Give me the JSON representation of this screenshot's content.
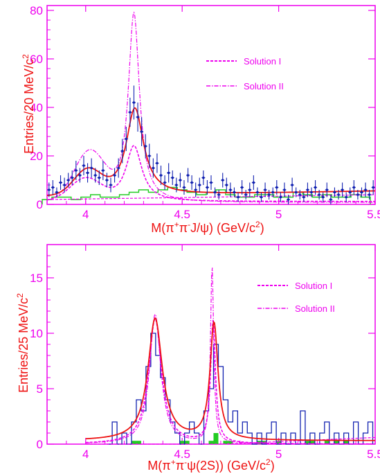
{
  "chart_data": [
    {
      "type": "line",
      "panel": "top",
      "xlabel": "M(π⁺π⁻J/ψ) (GeV/c²)",
      "xlabel_parts": {
        "a": "M(π",
        "sup1": "+",
        "b": "π",
        "sup2": "-",
        "c": "J/ψ) (GeV/c",
        "sup3": "2",
        "d": ")"
      },
      "ylabel": "Entries/20 MeV/c²",
      "ylabel_parts": {
        "a": "Entries/20 MeV/c",
        "sup": "2"
      },
      "xlim": [
        3.8,
        5.5
      ],
      "ylim": [
        0,
        82
      ],
      "xticks": [
        4,
        4.5,
        5,
        5.5
      ],
      "xtick_labels": [
        "4",
        "4.5",
        "5",
        "5.5"
      ],
      "yticks": [
        0,
        20,
        40,
        60,
        80
      ],
      "ytick_labels": [
        "0",
        "20",
        "40",
        "60",
        "80"
      ],
      "legend": {
        "position": "top-right",
        "entries": [
          "Solution I",
          "Solution II"
        ]
      },
      "colors": {
        "frame": "#ee00ee",
        "data": "#1020b0",
        "fit": "#ee1111",
        "solutions": "#ee00ee",
        "background_hist": "#22cc22"
      },
      "data_points": {
        "x": [
          3.81,
          3.83,
          3.85,
          3.87,
          3.89,
          3.91,
          3.93,
          3.95,
          3.97,
          3.99,
          4.01,
          4.03,
          4.05,
          4.07,
          4.09,
          4.11,
          4.13,
          4.15,
          4.17,
          4.19,
          4.21,
          4.23,
          4.25,
          4.27,
          4.29,
          4.31,
          4.33,
          4.35,
          4.37,
          4.39,
          4.41,
          4.43,
          4.45,
          4.47,
          4.49,
          4.51,
          4.53,
          4.55,
          4.57,
          4.59,
          4.61,
          4.63,
          4.65,
          4.67,
          4.69,
          4.71,
          4.73,
          4.75,
          4.77,
          4.79,
          4.81,
          4.83,
          4.85,
          4.87,
          4.89,
          4.91,
          4.93,
          4.95,
          4.97,
          4.99,
          5.01,
          5.03,
          5.05,
          5.07,
          5.09,
          5.11,
          5.13,
          5.15,
          5.17,
          5.19,
          5.21,
          5.23,
          5.25,
          5.27,
          5.29,
          5.31,
          5.33,
          5.35,
          5.37,
          5.39,
          5.41,
          5.43,
          5.45,
          5.47,
          5.49
        ],
        "y": [
          6,
          7,
          5,
          9,
          8,
          10,
          11,
          14,
          12,
          16,
          13,
          15,
          12,
          11,
          14,
          10,
          8,
          12,
          15,
          22,
          27,
          38,
          42,
          36,
          30,
          24,
          20,
          15,
          17,
          12,
          9,
          13,
          11,
          8,
          10,
          7,
          12,
          9,
          6,
          8,
          11,
          7,
          9,
          5,
          4,
          10,
          8,
          6,
          5,
          3,
          7,
          4,
          6,
          9,
          5,
          3,
          6,
          4,
          5,
          7,
          3,
          6,
          2,
          8,
          5,
          4,
          3,
          6,
          5,
          7,
          4,
          3,
          6,
          2,
          5,
          4,
          6,
          3,
          5,
          7,
          4,
          5,
          6,
          4,
          7
        ],
        "err": [
          3,
          3,
          2,
          3,
          3,
          3,
          3,
          4,
          3,
          4,
          4,
          4,
          3,
          3,
          4,
          3,
          3,
          3,
          4,
          5,
          5,
          6,
          7,
          6,
          6,
          5,
          5,
          4,
          4,
          4,
          3,
          4,
          3,
          3,
          3,
          3,
          3,
          3,
          3,
          3,
          3,
          3,
          3,
          2,
          2,
          3,
          3,
          3,
          2,
          2,
          3,
          2,
          3,
          3,
          2,
          2,
          3,
          2,
          2,
          3,
          2,
          3,
          2,
          3,
          2,
          2,
          2,
          3,
          2,
          3,
          2,
          2,
          3,
          2,
          2,
          2,
          3,
          2,
          2,
          3,
          2,
          2,
          3,
          2,
          3
        ]
      },
      "fit_curve": {
        "series": "total fit",
        "peak_x": 4.25,
        "peak_y": 41,
        "secondary_peak_x": 4.01,
        "secondary_peak_y": 13
      },
      "series": [
        {
          "name": "Solution I",
          "style": "dashed",
          "peak_x": 4.25,
          "peak_y": 23,
          "secondary_peak_y": 9
        },
        {
          "name": "Solution II",
          "style": "dash-dot",
          "peak_x": 4.25,
          "peak_y": 78,
          "secondary_peak_y": 20
        }
      ],
      "background_hist": {
        "x": [
          3.8,
          3.85,
          3.9,
          3.95,
          4.0,
          4.05,
          4.1,
          4.15,
          4.2,
          4.25,
          4.3,
          4.35,
          4.4,
          4.45,
          4.5,
          4.55,
          4.6,
          4.65,
          4.7,
          4.75,
          4.8,
          4.85,
          4.9,
          4.95,
          5.0,
          5.05,
          5.1,
          5.15,
          5.2,
          5.25,
          5.3,
          5.35,
          5.4,
          5.45
        ],
        "y": [
          2,
          3,
          3,
          2,
          3,
          4,
          3,
          3,
          4,
          5,
          6,
          5,
          6,
          7,
          6,
          5,
          4,
          5,
          6,
          4,
          3,
          3,
          4,
          4,
          3,
          3,
          5,
          4,
          3,
          4,
          3,
          3,
          4,
          3
        ]
      }
    },
    {
      "type": "line",
      "panel": "bottom",
      "xlabel": "M(π⁺π⁻ψ(2S)) (GeV/c²)",
      "xlabel_parts": {
        "a": "M(π",
        "sup1": "+",
        "b": "π",
        "sup2": "-",
        "c": "ψ(2S)) (GeV/c",
        "sup3": "2",
        "d": ")"
      },
      "ylabel": "Entries/25 MeV/c²",
      "ylabel_parts": {
        "a": "Entries/25 MeV/c",
        "sup": "2"
      },
      "xlim": [
        3.8,
        5.5
      ],
      "ylim": [
        0,
        18
      ],
      "xticks": [
        4,
        4.5,
        5,
        5.5
      ],
      "xtick_labels": [
        "4",
        "4.5",
        "5",
        "5.5"
      ],
      "yticks": [
        0,
        5,
        10,
        15
      ],
      "ytick_labels": [
        "0",
        "5",
        "10",
        "15"
      ],
      "legend": {
        "position": "top-right",
        "entries": [
          "Solution I",
          "Solution II"
        ]
      },
      "colors": {
        "frame": "#ee00ee",
        "data": "#1020b0",
        "fit": "#ee1111",
        "solutions": "#ee00ee",
        "background_hist": "#22cc22"
      },
      "data_hist": {
        "x": [
          4.125,
          4.15,
          4.175,
          4.2,
          4.225,
          4.25,
          4.275,
          4.3,
          4.325,
          4.35,
          4.375,
          4.4,
          4.425,
          4.45,
          4.475,
          4.5,
          4.525,
          4.55,
          4.575,
          4.6,
          4.625,
          4.65,
          4.675,
          4.7,
          4.725,
          4.75,
          4.775,
          4.8,
          4.825,
          4.85,
          4.875,
          4.9,
          4.925,
          4.95,
          4.975,
          5.0,
          5.025,
          5.05,
          5.075,
          5.1,
          5.125,
          5.15,
          5.175,
          5.2,
          5.225,
          5.25,
          5.275,
          5.3,
          5.325,
          5.35,
          5.375,
          5.4,
          5.425,
          5.45,
          5.475
        ],
        "y": [
          0,
          2,
          0,
          1,
          0,
          2,
          4,
          3,
          7,
          10,
          8,
          6,
          4,
          2,
          1,
          0,
          1,
          2,
          1,
          0,
          3,
          5,
          9,
          7,
          4,
          2,
          3,
          1,
          2,
          1,
          0,
          1,
          0,
          1,
          2,
          0,
          1,
          0,
          1,
          0,
          3,
          0,
          1,
          0,
          1,
          2,
          0,
          1,
          0,
          1,
          0,
          2,
          0,
          1,
          2
        ]
      },
      "fit_curve": {
        "series": "total fit",
        "peak1_x": 4.36,
        "peak1_y": 11,
        "peak2_x": 4.66,
        "peak2_y": 10.5
      },
      "series": [
        {
          "name": "Solution I",
          "style": "dashed",
          "peak1_y": 11.3,
          "peak2_y": 11.0
        },
        {
          "name": "Solution II",
          "style": "dash-dot",
          "peak1_y": 11.7,
          "peak2_y": 16.0
        }
      ],
      "background_hist": {
        "x": [
          4.25,
          4.275,
          4.5,
          4.525,
          4.65,
          4.675,
          4.725,
          4.75,
          4.9,
          4.925,
          5.0,
          5.15,
          5.175,
          5.25,
          5.3,
          5.35
        ],
        "y": [
          0.3,
          0.3,
          0.3,
          0.3,
          0.3,
          1.0,
          0.3,
          0.3,
          0.3,
          0.3,
          0.3,
          0.3,
          0.3,
          0.3,
          0.3,
          0.3
        ]
      }
    }
  ]
}
